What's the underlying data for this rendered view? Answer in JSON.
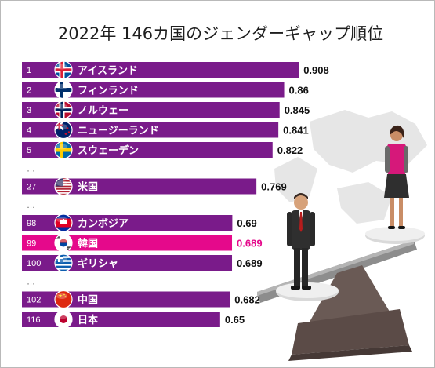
{
  "title": "2022年 146カ国のジェンダーギャップ順位",
  "colors": {
    "bar": "#7a1b8a",
    "highlight": "#e5098b",
    "value_highlight": "#e5098b"
  },
  "chart_data": {
    "type": "bar",
    "orientation": "horizontal",
    "title": "2022年 146カ国のジェンダーギャップ順位",
    "rows": [
      {
        "rank": "1",
        "country": "アイスランド",
        "value": 0.908,
        "value_label": "0.908",
        "flag": "iceland-flag-icon"
      },
      {
        "rank": "2",
        "country": "フィンランド",
        "value": 0.86,
        "value_label": "0.86",
        "flag": "finland-flag-icon"
      },
      {
        "rank": "3",
        "country": "ノルウェー",
        "value": 0.845,
        "value_label": "0.845",
        "flag": "norway-flag-icon"
      },
      {
        "rank": "4",
        "country": "ニュージーランド",
        "value": 0.841,
        "value_label": "0.841",
        "flag": "new-zealand-flag-icon"
      },
      {
        "rank": "5",
        "country": "スウェーデン",
        "value": 0.822,
        "value_label": "0.822",
        "flag": "sweden-flag-icon"
      },
      {
        "gap": "…"
      },
      {
        "rank": "27",
        "country": "米国",
        "value": 0.769,
        "value_label": "0.769",
        "flag": "usa-flag-icon"
      },
      {
        "gap": "…"
      },
      {
        "rank": "98",
        "country": "カンボジア",
        "value": 0.69,
        "value_label": "0.69",
        "flag": "cambodia-flag-icon"
      },
      {
        "rank": "99",
        "country": "韓国",
        "value": 0.689,
        "value_label": "0.689",
        "flag": "south-korea-flag-icon",
        "highlight": true
      },
      {
        "rank": "100",
        "country": "ギリシャ",
        "value": 0.689,
        "value_label": "0.689",
        "flag": "greece-flag-icon"
      },
      {
        "gap": "…"
      },
      {
        "rank": "102",
        "country": "中国",
        "value": 0.682,
        "value_label": "0.682",
        "flag": "china-flag-icon"
      },
      {
        "rank": "116",
        "country": "日本",
        "value": 0.65,
        "value_label": "0.65",
        "flag": "japan-flag-icon"
      }
    ],
    "xlim": [
      0,
      1
    ],
    "grid": false,
    "legend": "none"
  }
}
